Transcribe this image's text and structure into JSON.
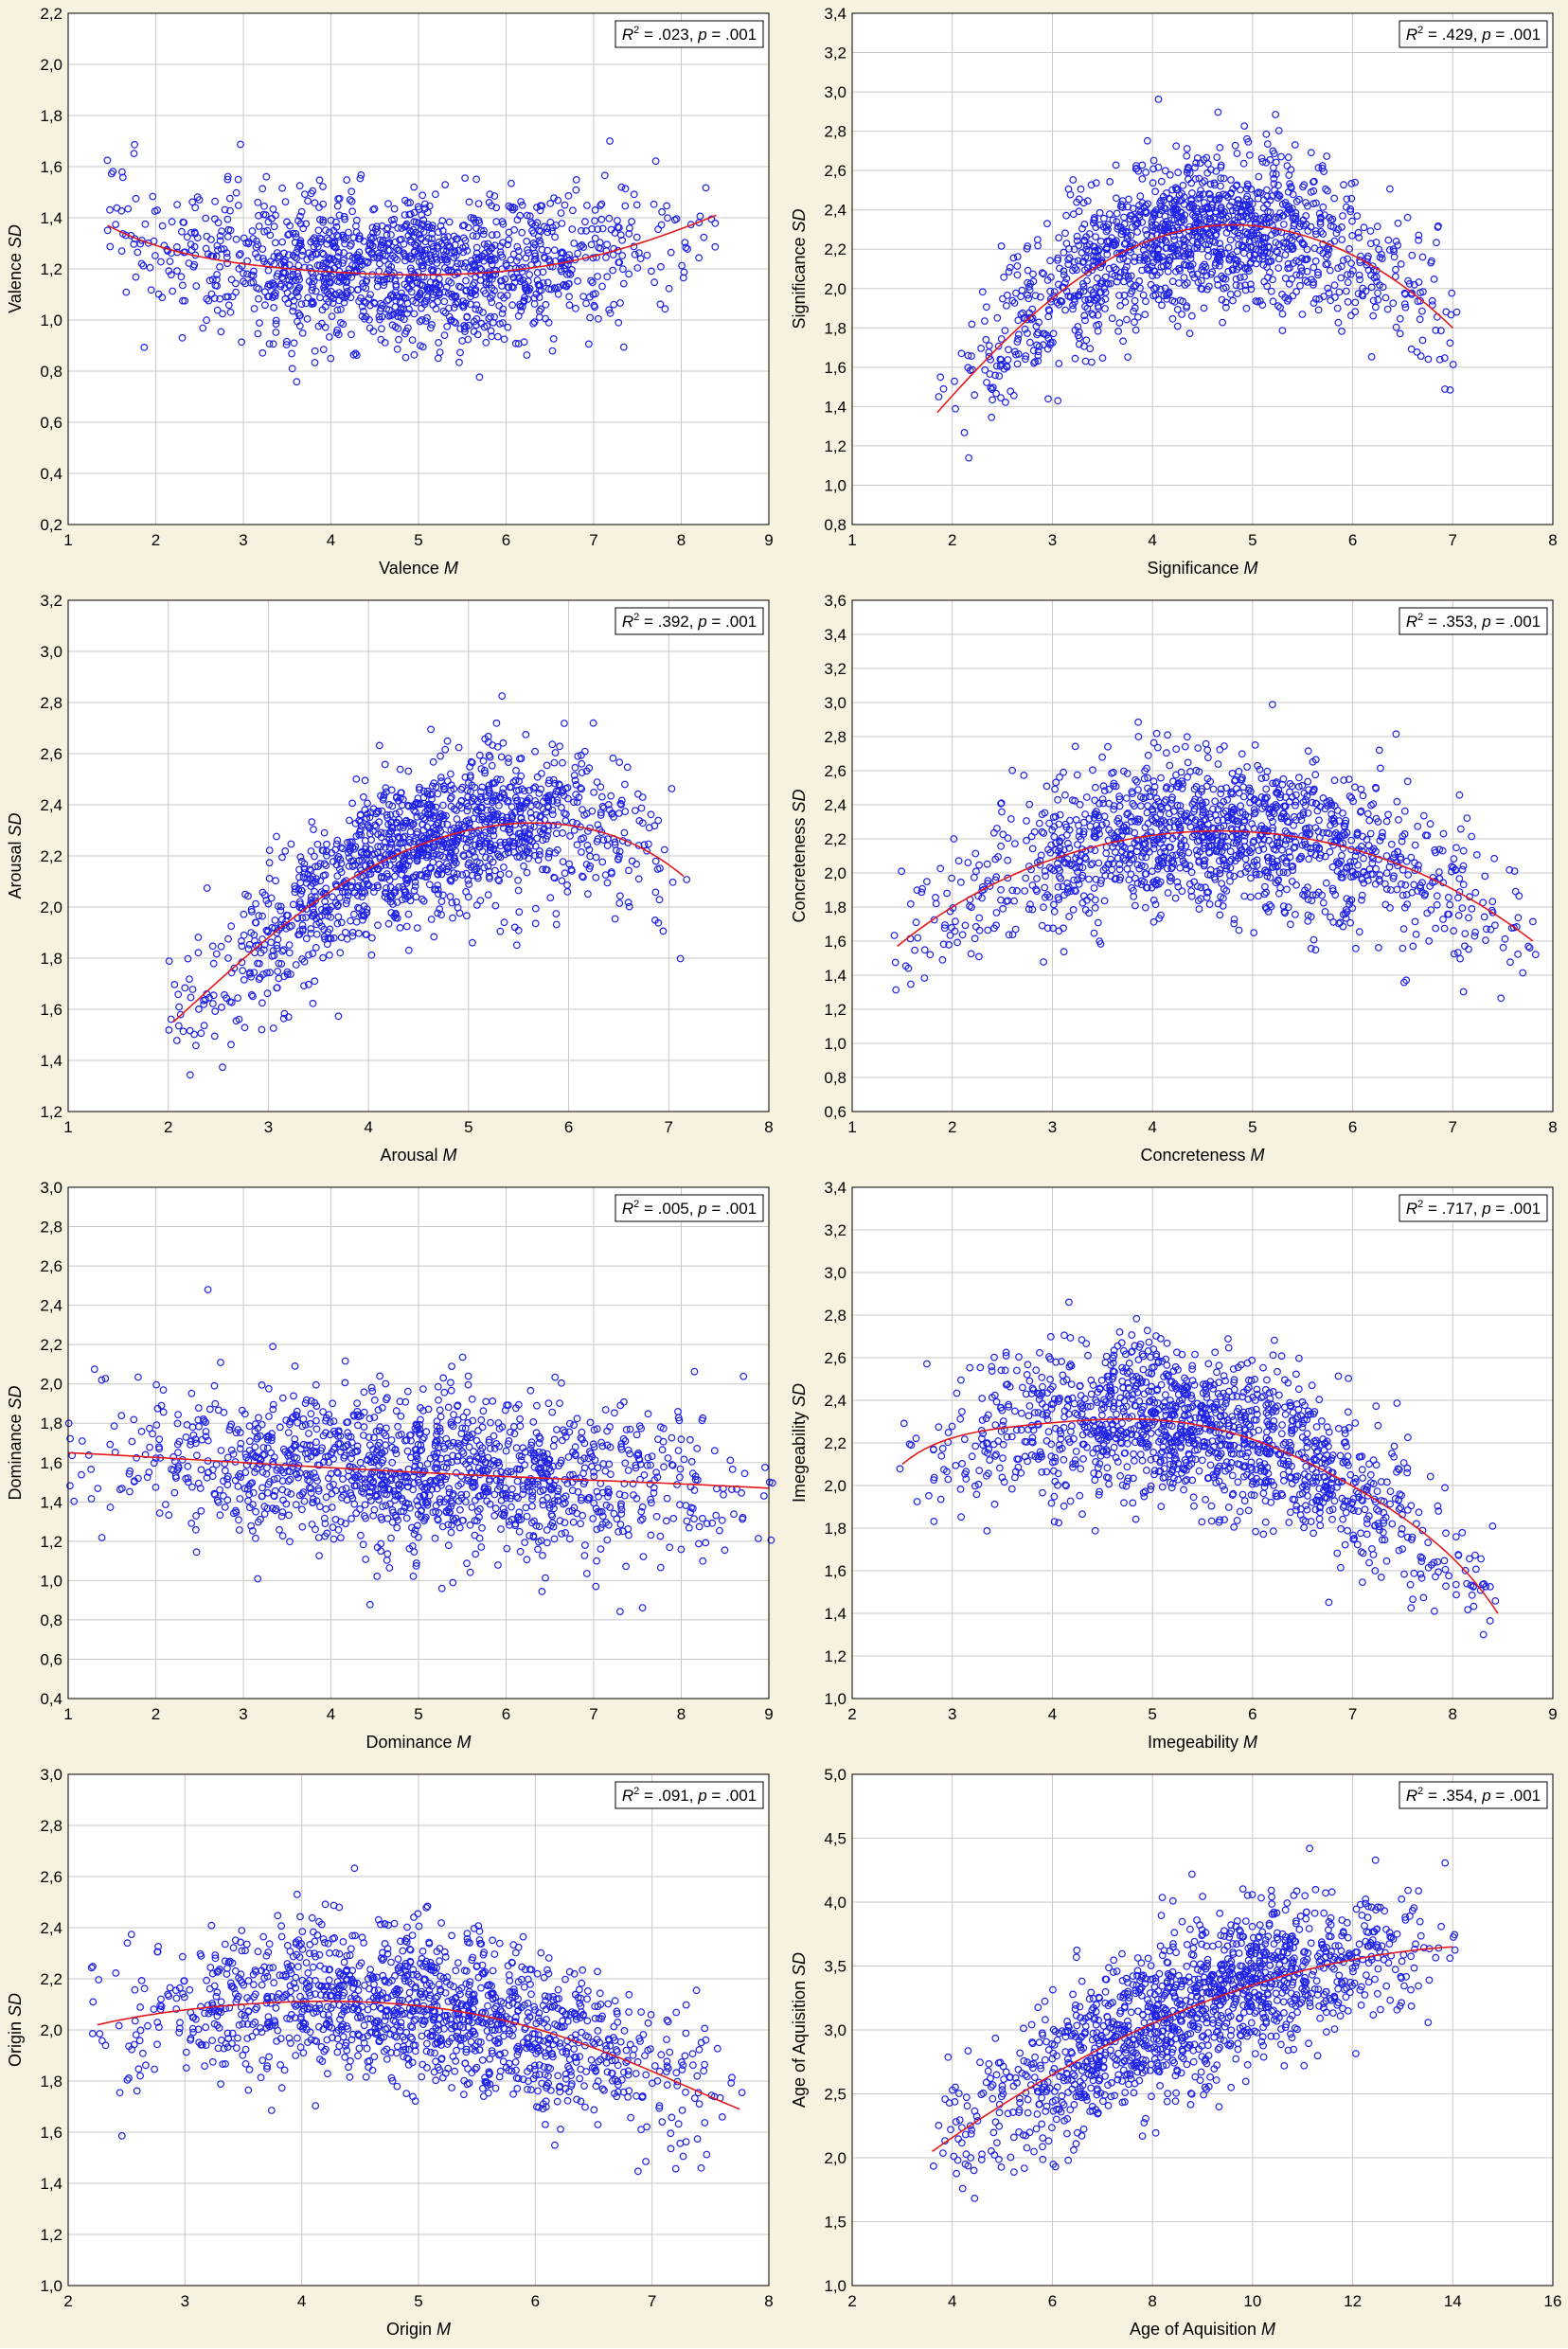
{
  "colors": {
    "panel_background": "#f7f1df",
    "plot_background": "#ffffff",
    "grid": "#c8c8c8",
    "points": "#1f22e6",
    "fit_line": "#e31a1c"
  },
  "chart_data": [
    {
      "type": "scatter",
      "xlabel": "Valence M",
      "xlabel_parts": [
        "Valence ",
        "M"
      ],
      "ylabel": "Valence SD",
      "ylabel_parts": [
        "Valence ",
        "SD"
      ],
      "xlim": [
        1,
        9
      ],
      "xticks": [
        1,
        2,
        3,
        4,
        5,
        6,
        7,
        8,
        9
      ],
      "ylim": [
        0.2,
        2.2
      ],
      "yticks": [
        0.2,
        0.4,
        0.6,
        0.8,
        1.0,
        1.2,
        1.4,
        1.6,
        1.8,
        2.0,
        2.2
      ],
      "tick_decimals": {
        "x": 0,
        "y": 1
      },
      "annotation": {
        "r2": ".023",
        "p": ".001"
      },
      "annotation_text": "R2 = .023, p = .001",
      "fit": {
        "type": "quadratic",
        "points": [
          [
            1.45,
            1.37
          ],
          [
            3,
            1.22
          ],
          [
            4.5,
            1.18
          ],
          [
            5.5,
            1.18
          ],
          [
            7,
            1.25
          ],
          [
            8.4,
            1.41
          ]
        ]
      },
      "grid": true
    },
    {
      "type": "scatter",
      "xlabel": "Significance M",
      "xlabel_parts": [
        "Significance ",
        "M"
      ],
      "ylabel": "Significance SD",
      "ylabel_parts": [
        "Significance ",
        "SD"
      ],
      "xlim": [
        1,
        8
      ],
      "xticks": [
        1,
        2,
        3,
        4,
        5,
        6,
        7,
        8
      ],
      "ylim": [
        0.8,
        3.4
      ],
      "yticks": [
        0.8,
        1.0,
        1.2,
        1.4,
        1.6,
        1.8,
        2.0,
        2.2,
        2.4,
        2.6,
        2.8,
        3.0,
        3.2,
        3.4
      ],
      "tick_decimals": {
        "x": 0,
        "y": 1
      },
      "annotation": {
        "r2": ".429",
        "p": ".001"
      },
      "annotation_text": "R2 = .429, p = .001",
      "fit": {
        "type": "quadratic",
        "points": [
          [
            1.85,
            1.37
          ],
          [
            3,
            1.95
          ],
          [
            4,
            2.25
          ],
          [
            5,
            2.32
          ],
          [
            6,
            2.17
          ],
          [
            7,
            1.8
          ]
        ]
      },
      "grid": true
    },
    {
      "type": "scatter",
      "xlabel": "Arousal M",
      "xlabel_parts": [
        "Arousal ",
        "M"
      ],
      "ylabel": "Arousal SD",
      "ylabel_parts": [
        "Arousal ",
        "SD"
      ],
      "xlim": [
        1,
        8
      ],
      "xticks": [
        1,
        2,
        3,
        4,
        5,
        6,
        7,
        8
      ],
      "ylim": [
        1.2,
        3.2
      ],
      "yticks": [
        1.2,
        1.4,
        1.6,
        1.8,
        2.0,
        2.2,
        2.4,
        2.6,
        2.8,
        3.0,
        3.2
      ],
      "tick_decimals": {
        "x": 0,
        "y": 1
      },
      "annotation": {
        "r2": ".392",
        "p": ".001"
      },
      "annotation_text": "R2 = .392, p = .001",
      "fit": {
        "type": "quadratic",
        "points": [
          [
            2.05,
            1.55
          ],
          [
            3,
            1.88
          ],
          [
            4,
            2.15
          ],
          [
            5,
            2.3
          ],
          [
            6,
            2.32
          ],
          [
            7.15,
            2.12
          ]
        ]
      },
      "grid": true
    },
    {
      "type": "scatter",
      "xlabel": "Concreteness M",
      "xlabel_parts": [
        "Concreteness ",
        "M"
      ],
      "ylabel": "Concreteness SD",
      "ylabel_parts": [
        "Concreteness ",
        "SD"
      ],
      "xlim": [
        1,
        8
      ],
      "xticks": [
        1,
        2,
        3,
        4,
        5,
        6,
        7,
        8
      ],
      "ylim": [
        0.6,
        3.6
      ],
      "yticks": [
        0.6,
        0.8,
        1.0,
        1.2,
        1.4,
        1.6,
        1.8,
        2.0,
        2.2,
        2.4,
        2.6,
        2.8,
        3.0,
        3.2,
        3.4,
        3.6
      ],
      "tick_decimals": {
        "x": 0,
        "y": 1
      },
      "annotation": {
        "r2": ".353",
        "p": ".001"
      },
      "annotation_text": "R2 = .353, p = .001",
      "fit": {
        "type": "quadratic",
        "points": [
          [
            1.45,
            1.57
          ],
          [
            3,
            2.08
          ],
          [
            4,
            2.22
          ],
          [
            5,
            2.24
          ],
          [
            6,
            2.14
          ],
          [
            7.8,
            1.6
          ]
        ]
      },
      "grid": true
    },
    {
      "type": "scatter",
      "xlabel": "Dominance M",
      "xlabel_parts": [
        "Dominance ",
        "M"
      ],
      "ylabel": "Dominance SD",
      "ylabel_parts": [
        "Dominance ",
        "SD"
      ],
      "xlim": [
        1,
        9
      ],
      "xticks": [
        1,
        2,
        3,
        4,
        5,
        6,
        7,
        8,
        9
      ],
      "ylim": [
        0.4,
        3.0
      ],
      "yticks": [
        0.4,
        0.6,
        0.8,
        1.0,
        1.2,
        1.4,
        1.6,
        1.8,
        2.0,
        2.2,
        2.4,
        2.6,
        2.8,
        3.0
      ],
      "tick_decimals": {
        "x": 0,
        "y": 1
      },
      "annotation": {
        "r2": ".005",
        "p": ".001"
      },
      "annotation_text": "R2 = .005, p = .001",
      "fit": {
        "type": "quadratic",
        "points": [
          [
            1,
            1.65
          ],
          [
            3,
            1.6
          ],
          [
            5,
            1.55
          ],
          [
            7,
            1.51
          ],
          [
            9,
            1.47
          ]
        ]
      },
      "grid": true
    },
    {
      "type": "scatter",
      "xlabel": "Imegeability M",
      "xlabel_parts": [
        "Imegeability ",
        "M"
      ],
      "ylabel": "Imegeability SD",
      "ylabel_parts": [
        "Imegeability ",
        "SD"
      ],
      "xlim": [
        2,
        9
      ],
      "xticks": [
        2,
        3,
        4,
        5,
        6,
        7,
        8,
        9
      ],
      "ylim": [
        1.0,
        3.4
      ],
      "yticks": [
        1.0,
        1.2,
        1.4,
        1.6,
        1.8,
        2.0,
        2.2,
        2.4,
        2.6,
        2.8,
        3.0,
        3.2,
        3.4
      ],
      "tick_decimals": {
        "x": 0,
        "y": 1
      },
      "annotation": {
        "r2": ".717",
        "p": ".001"
      },
      "annotation_text": "R2 = .717, p = .001",
      "fit": {
        "type": "quadratic",
        "points": [
          [
            2.5,
            2.1
          ],
          [
            3.5,
            2.27
          ],
          [
            4.5,
            2.31
          ],
          [
            5.5,
            2.28
          ],
          [
            6.5,
            2.12
          ],
          [
            7.5,
            1.85
          ],
          [
            8.45,
            1.4
          ]
        ]
      },
      "grid": true
    },
    {
      "type": "scatter",
      "xlabel": "Origin M",
      "xlabel_parts": [
        "Origin ",
        "M"
      ],
      "ylabel": "Origin SD",
      "ylabel_parts": [
        "Origin ",
        "SD"
      ],
      "xlim": [
        2,
        8
      ],
      "xticks": [
        2,
        3,
        4,
        5,
        6,
        7,
        8
      ],
      "ylim": [
        1.0,
        3.0
      ],
      "yticks": [
        1.0,
        1.2,
        1.4,
        1.6,
        1.8,
        2.0,
        2.2,
        2.4,
        2.6,
        2.8,
        3.0
      ],
      "tick_decimals": {
        "x": 0,
        "y": 1
      },
      "annotation": {
        "r2": ".091",
        "p": ".001"
      },
      "annotation_text": "R2 = .091, p = .001",
      "fit": {
        "type": "quadratic",
        "points": [
          [
            2.25,
            2.02
          ],
          [
            3.5,
            2.1
          ],
          [
            4.5,
            2.11
          ],
          [
            5.5,
            2.06
          ],
          [
            6.5,
            1.93
          ],
          [
            7.75,
            1.69
          ]
        ]
      },
      "grid": true
    },
    {
      "type": "scatter",
      "xlabel": "Age of Aquisition M",
      "xlabel_parts": [
        "Age of Aquisition ",
        "M"
      ],
      "ylabel": "Age of Aquisition SD",
      "ylabel_parts": [
        "Age of Aquisition ",
        "SD"
      ],
      "xlim": [
        2,
        16
      ],
      "xticks": [
        2,
        4,
        6,
        8,
        10,
        12,
        14,
        16
      ],
      "ylim": [
        1.0,
        5.0
      ],
      "yticks": [
        1.0,
        1.5,
        2.0,
        2.5,
        3.0,
        3.5,
        4.0,
        4.5,
        5.0
      ],
      "tick_decimals": {
        "x": 0,
        "y": 1
      },
      "annotation": {
        "r2": ".354",
        "p": ".001"
      },
      "annotation_text": "R2 = .354, p = .001",
      "fit": {
        "type": "quadratic",
        "points": [
          [
            3.6,
            2.05
          ],
          [
            6,
            2.65
          ],
          [
            8,
            3.05
          ],
          [
            10,
            3.35
          ],
          [
            12,
            3.55
          ],
          [
            14,
            3.65
          ]
        ]
      },
      "grid": true
    }
  ]
}
